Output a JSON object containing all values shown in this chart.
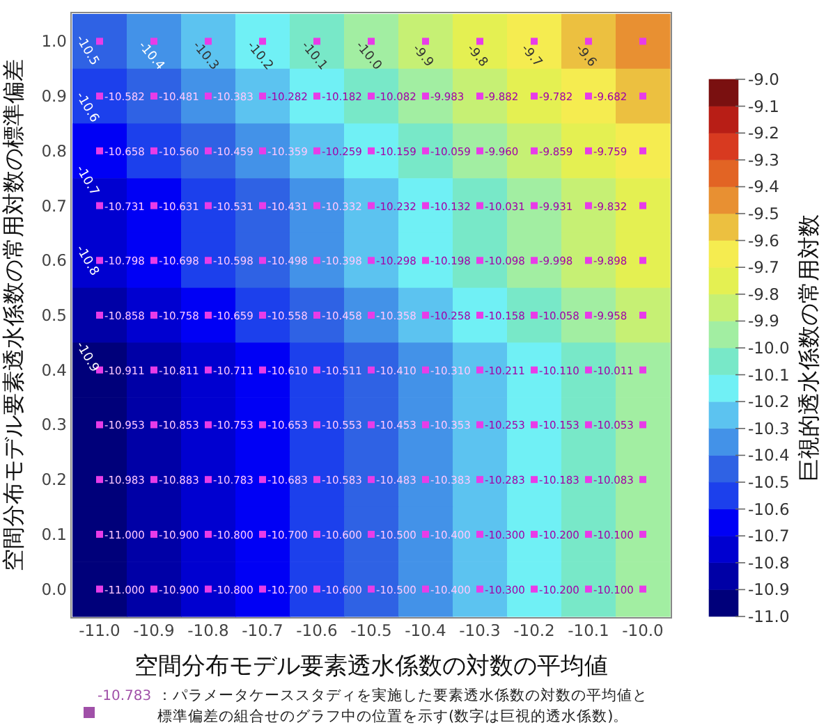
{
  "chart_data": {
    "type": "heatmap",
    "xlabel": "空間分布モデル要素透水係数の対数の平均値",
    "ylabel": "空間分布モデル要素透水係数の常用対数の標準偏差",
    "clabel": "巨視的透水係数の常用対数",
    "categories": [
      "-11.0",
      "-10.9",
      "-10.8",
      "-10.7",
      "-10.6",
      "-10.5",
      "-10.4",
      "-10.3",
      "-10.2",
      "-10.1",
      "-10.0"
    ],
    "y_categories": [
      "1.0",
      "0.9",
      "0.8",
      "0.7",
      "0.6",
      "0.5",
      "0.4",
      "0.3",
      "0.2",
      "0.1",
      "0.0"
    ],
    "cells": [
      [
        -10.48,
        -10.38,
        -10.28,
        -10.18,
        -10.08,
        -9.98,
        -9.88,
        -9.78,
        -9.68,
        -9.58,
        -9.5
      ],
      [
        -10.582,
        -10.481,
        -10.383,
        -10.282,
        -10.182,
        -10.082,
        -9.983,
        -9.882,
        -9.782,
        -9.682,
        -9.58
      ],
      [
        -10.658,
        -10.56,
        -10.459,
        -10.359,
        -10.259,
        -10.159,
        -10.059,
        -9.96,
        -9.859,
        -9.759,
        -9.66
      ],
      [
        -10.731,
        -10.631,
        -10.531,
        -10.431,
        -10.332,
        -10.232,
        -10.132,
        -10.031,
        -9.931,
        -9.832,
        -9.73
      ],
      [
        -10.798,
        -10.698,
        -10.598,
        -10.498,
        -10.398,
        -10.298,
        -10.198,
        -10.098,
        -9.998,
        -9.898,
        -9.8
      ],
      [
        -10.858,
        -10.758,
        -10.659,
        -10.558,
        -10.458,
        -10.358,
        -10.258,
        -10.158,
        -10.058,
        -9.958,
        -9.86
      ],
      [
        -10.911,
        -10.811,
        -10.711,
        -10.61,
        -10.511,
        -10.41,
        -10.31,
        -10.211,
        -10.11,
        -10.011,
        -9.91
      ],
      [
        -10.953,
        -10.853,
        -10.753,
        -10.653,
        -10.553,
        -10.453,
        -10.353,
        -10.253,
        -10.153,
        -10.053,
        -9.95
      ],
      [
        -10.983,
        -10.883,
        -10.783,
        -10.683,
        -10.583,
        -10.483,
        -10.383,
        -10.283,
        -10.183,
        -10.083,
        -9.98
      ],
      [
        -11.0,
        -10.9,
        -10.8,
        -10.7,
        -10.6,
        -10.5,
        -10.4,
        -10.3,
        -10.2,
        -10.1,
        -10.0
      ],
      [
        -11.0,
        -10.9,
        -10.8,
        -10.7,
        -10.6,
        -10.5,
        -10.4,
        -10.3,
        -10.2,
        -10.1,
        -10.0
      ]
    ],
    "cell_labels": [
      [
        null,
        null,
        null,
        null,
        null,
        null,
        null,
        null,
        null,
        null,
        null
      ],
      [
        "-10.582",
        "-10.481",
        "-10.383",
        "-10.282",
        "-10.182",
        "-10.082",
        "-9.983",
        "-9.882",
        "-9.782",
        "-9.682",
        null
      ],
      [
        "-10.658",
        "-10.560",
        "-10.459",
        "-10.359",
        "-10.259",
        "-10.159",
        "-10.059",
        "-9.960",
        "-9.859",
        "-9.759",
        null
      ],
      [
        "-10.731",
        "-10.631",
        "-10.531",
        "-10.431",
        "-10.332",
        "-10.232",
        "-10.132",
        "-10.031",
        "-9.931",
        "-9.832",
        null
      ],
      [
        "-10.798",
        "-10.698",
        "-10.598",
        "-10.498",
        "-10.398",
        "-10.298",
        "-10.198",
        "-10.098",
        "-9.998",
        "-9.898",
        null
      ],
      [
        "-10.858",
        "-10.758",
        "-10.659",
        "-10.558",
        "-10.458",
        "-10.358",
        "-10.258",
        "-10.158",
        "-10.058",
        "-9.958",
        null
      ],
      [
        "-10.911",
        "-10.811",
        "-10.711",
        "-10.610",
        "-10.511",
        "-10.410",
        "-10.310",
        "-10.211",
        "-10.110",
        "-10.011",
        null
      ],
      [
        "-10.953",
        "-10.853",
        "-10.753",
        "-10.653",
        "-10.553",
        "-10.453",
        "-10.353",
        "-10.253",
        "-10.153",
        "-10.053",
        null
      ],
      [
        "-10.983",
        "-10.883",
        "-10.783",
        "-10.683",
        "-10.583",
        "-10.483",
        "-10.383",
        "-10.283",
        "-10.183",
        "-10.083",
        null
      ],
      [
        "-11.000",
        "-10.900",
        "-10.800",
        "-10.700",
        "-10.600",
        "-10.500",
        "-10.400",
        "-10.300",
        "-10.200",
        "-10.100",
        null
      ],
      [
        "-11.000",
        "-10.900",
        "-10.800",
        "-10.700",
        "-10.600",
        "-10.500",
        "-10.400",
        "-10.300",
        "-10.200",
        "-10.100",
        null
      ]
    ],
    "clim": [
      -11.0,
      -9.0
    ],
    "cticks": [
      {
        "value": -11.0,
        "label": "-11.0"
      },
      {
        "value": -10.9,
        "label": "-10.9"
      },
      {
        "value": -10.8,
        "label": "-10.8"
      },
      {
        "value": -10.7,
        "label": "-10.7"
      },
      {
        "value": -10.6,
        "label": "-10.6"
      },
      {
        "value": -10.5,
        "label": "-10.5"
      },
      {
        "value": -10.4,
        "label": "-10.4"
      },
      {
        "value": -10.3,
        "label": "-10.3"
      },
      {
        "value": -10.2,
        "label": "-10.2"
      },
      {
        "value": -10.1,
        "label": "-10.1"
      },
      {
        "value": -10.0,
        "label": "-10.0"
      },
      {
        "value": -9.9,
        "label": "-9.9"
      },
      {
        "value": -9.8,
        "label": "-9.8"
      },
      {
        "value": -9.7,
        "label": "-9.7"
      },
      {
        "value": -9.6,
        "label": "-9.6"
      },
      {
        "value": -9.5,
        "label": "-9.5"
      },
      {
        "value": -9.4,
        "label": "-9.4"
      },
      {
        "value": -9.3,
        "label": "-9.3"
      },
      {
        "value": -9.2,
        "label": "-9.2"
      },
      {
        "value": -9.1,
        "label": "-9.1"
      },
      {
        "value": -9.0,
        "label": "-9.0"
      }
    ],
    "annotations": [
      "-10.9",
      "-10.8",
      "-10.7",
      "-10.6",
      "-10.5",
      "-10.4",
      "-10.3",
      "-10.2",
      "-10.1",
      "-10.0",
      "-9.9",
      "-9.8",
      "-9.7",
      "-9.6",
      "-10.783",
      "：パラメータケーススタディを実施した要素透水係数の対数の平均値と",
      "標準偏差の組合せのグラフ中の位置を示す(数字は巨視的透水係数)。"
    ]
  }
}
